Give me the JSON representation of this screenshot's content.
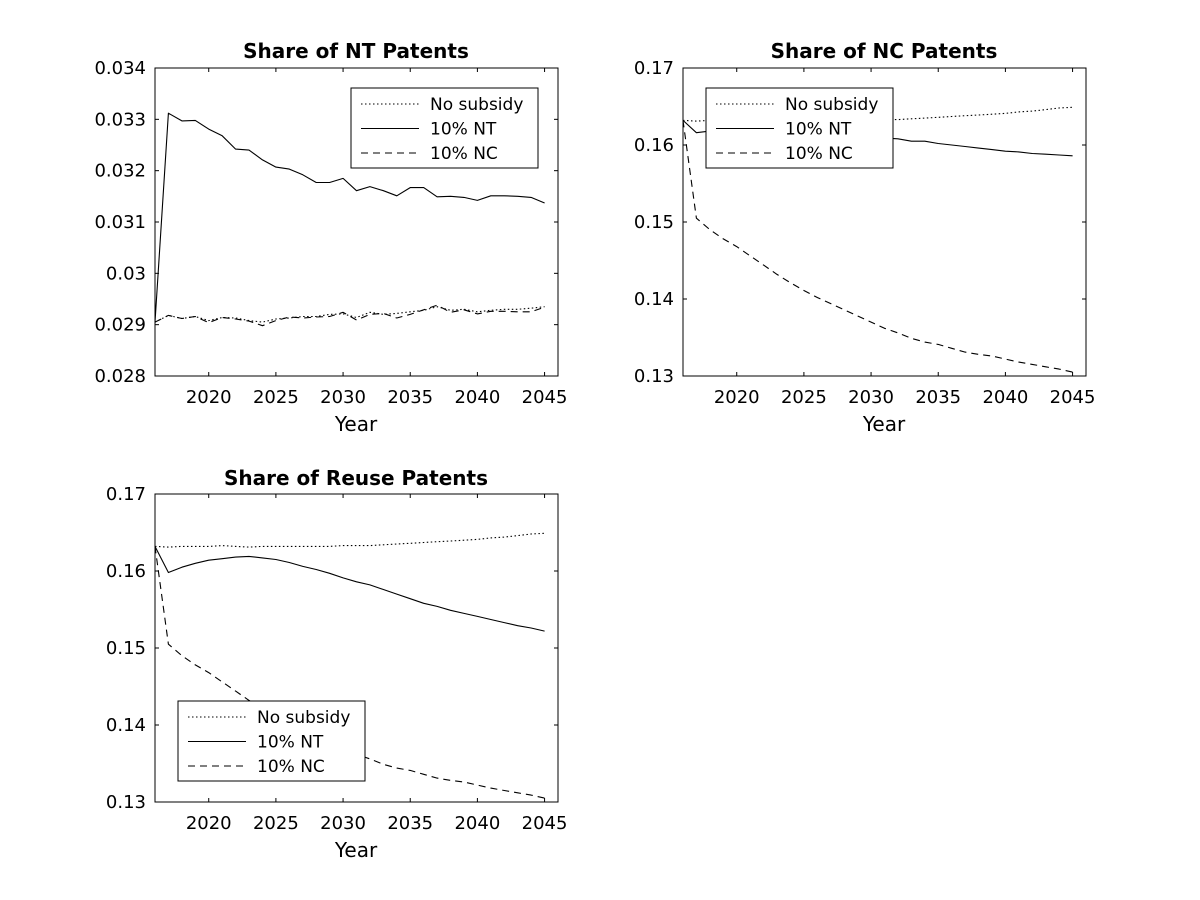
{
  "chart_data": [
    {
      "type": "line",
      "title": "Share of NT Patents",
      "xlabel": "Year",
      "ylabel": "",
      "xlim": [
        2016,
        2046
      ],
      "ylim": [
        0.028,
        0.034
      ],
      "xticks": [
        2020,
        2025,
        2030,
        2035,
        2040,
        2045
      ],
      "yticks": [
        0.028,
        0.029,
        0.03,
        0.031,
        0.032,
        0.033,
        0.034
      ],
      "ytick_labels": [
        "0.028",
        "0.029",
        "0.03",
        "0.031",
        "0.032",
        "0.033",
        "0.034"
      ],
      "grid": false,
      "legend_position": "top-right",
      "x": [
        2016,
        2017,
        2018,
        2019,
        2020,
        2021,
        2022,
        2023,
        2024,
        2025,
        2026,
        2027,
        2028,
        2029,
        2030,
        2031,
        2032,
        2033,
        2034,
        2035,
        2036,
        2037,
        2038,
        2039,
        2040,
        2041,
        2042,
        2043,
        2044,
        2045
      ],
      "series": [
        {
          "name": "No subsidy",
          "style": "dotted",
          "values": [
            0.02905,
            0.02918,
            0.02912,
            0.02916,
            0.02908,
            0.02914,
            0.02913,
            0.02908,
            0.02905,
            0.02911,
            0.02913,
            0.02916,
            0.02916,
            0.0292,
            0.02921,
            0.02914,
            0.02924,
            0.0292,
            0.02922,
            0.02925,
            0.02928,
            0.02935,
            0.02928,
            0.0293,
            0.02925,
            0.02928,
            0.0293,
            0.0293,
            0.02932,
            0.02935
          ]
        },
        {
          "name": "10% NT",
          "style": "solid",
          "values": [
            0.02905,
            0.03312,
            0.03297,
            0.03298,
            0.03281,
            0.03268,
            0.03242,
            0.0324,
            0.03221,
            0.03207,
            0.03203,
            0.03192,
            0.03177,
            0.03177,
            0.03185,
            0.03161,
            0.03169,
            0.03161,
            0.03151,
            0.03167,
            0.03167,
            0.03149,
            0.0315,
            0.03148,
            0.03142,
            0.03151,
            0.03151,
            0.0315,
            0.03148,
            0.03137
          ]
        },
        {
          "name": "10% NC",
          "style": "dashed",
          "values": [
            0.02905,
            0.02918,
            0.02912,
            0.02916,
            0.02904,
            0.02914,
            0.02911,
            0.02907,
            0.02898,
            0.02908,
            0.02915,
            0.02913,
            0.02915,
            0.02916,
            0.02924,
            0.02909,
            0.0292,
            0.02922,
            0.02913,
            0.0292,
            0.02929,
            0.02938,
            0.02924,
            0.02929,
            0.02921,
            0.02926,
            0.02926,
            0.02925,
            0.02925,
            0.02934
          ]
        }
      ]
    },
    {
      "type": "line",
      "title": "Share of NC Patents",
      "xlabel": "Year",
      "ylabel": "",
      "xlim": [
        2016,
        2046
      ],
      "ylim": [
        0.13,
        0.17
      ],
      "xticks": [
        2020,
        2025,
        2030,
        2035,
        2040,
        2045
      ],
      "yticks": [
        0.13,
        0.14,
        0.15,
        0.16,
        0.17
      ],
      "ytick_labels": [
        "0.13",
        "0.14",
        "0.15",
        "0.16",
        "0.17"
      ],
      "grid": false,
      "legend_position": "top-left",
      "x": [
        2016,
        2017,
        2018,
        2019,
        2020,
        2021,
        2022,
        2023,
        2024,
        2025,
        2026,
        2027,
        2028,
        2029,
        2030,
        2031,
        2032,
        2033,
        2034,
        2035,
        2036,
        2037,
        2038,
        2039,
        2040,
        2041,
        2042,
        2043,
        2044,
        2045
      ],
      "series": [
        {
          "name": "No subsidy",
          "style": "dotted",
          "values": [
            0.1632,
            0.1631,
            0.1632,
            0.1632,
            0.1632,
            0.1633,
            0.1632,
            0.1631,
            0.1632,
            0.1632,
            0.1632,
            0.1632,
            0.1632,
            0.1632,
            0.1633,
            0.1633,
            0.1633,
            0.1634,
            0.1635,
            0.1636,
            0.1637,
            0.1638,
            0.1639,
            0.164,
            0.1641,
            0.1643,
            0.1644,
            0.1646,
            0.1648,
            0.1649
          ]
        },
        {
          "name": "10% NT",
          "style": "solid",
          "values": [
            0.1632,
            0.1616,
            0.1618,
            0.1622,
            0.1623,
            0.1624,
            0.1624,
            0.1623,
            0.1622,
            0.162,
            0.1618,
            0.1616,
            0.1614,
            0.1612,
            0.1611,
            0.1609,
            0.1608,
            0.1605,
            0.1605,
            0.1602,
            0.16,
            0.1598,
            0.1596,
            0.1594,
            0.1592,
            0.1591,
            0.1589,
            0.1588,
            0.1587,
            0.1586
          ]
        },
        {
          "name": "10% NC",
          "style": "dashed",
          "values": [
            0.1632,
            0.1505,
            0.149,
            0.1478,
            0.1468,
            0.1456,
            0.1444,
            0.1432,
            0.1421,
            0.1411,
            0.1402,
            0.1394,
            0.1386,
            0.1378,
            0.137,
            0.1362,
            0.1356,
            0.1349,
            0.1344,
            0.1341,
            0.1336,
            0.1331,
            0.1328,
            0.1326,
            0.1322,
            0.1318,
            0.1315,
            0.1312,
            0.1309,
            0.1305
          ]
        }
      ]
    },
    {
      "type": "line",
      "title": "Share of Reuse Patents",
      "xlabel": "Year",
      "ylabel": "",
      "xlim": [
        2016,
        2046
      ],
      "ylim": [
        0.13,
        0.17
      ],
      "xticks": [
        2020,
        2025,
        2030,
        2035,
        2040,
        2045
      ],
      "yticks": [
        0.13,
        0.14,
        0.15,
        0.16,
        0.17
      ],
      "ytick_labels": [
        "0.13",
        "0.14",
        "0.15",
        "0.16",
        "0.17"
      ],
      "grid": false,
      "legend_position": "bottom-left",
      "x": [
        2016,
        2017,
        2018,
        2019,
        2020,
        2021,
        2022,
        2023,
        2024,
        2025,
        2026,
        2027,
        2028,
        2029,
        2030,
        2031,
        2032,
        2033,
        2034,
        2035,
        2036,
        2037,
        2038,
        2039,
        2040,
        2041,
        2042,
        2043,
        2044,
        2045
      ],
      "series": [
        {
          "name": "No subsidy",
          "style": "dotted",
          "values": [
            0.1632,
            0.1631,
            0.1632,
            0.1632,
            0.1632,
            0.1633,
            0.1632,
            0.1631,
            0.1632,
            0.1632,
            0.1632,
            0.1632,
            0.1632,
            0.1632,
            0.1633,
            0.1633,
            0.1633,
            0.1634,
            0.1635,
            0.1636,
            0.1637,
            0.1638,
            0.1639,
            0.164,
            0.1641,
            0.1643,
            0.1644,
            0.1646,
            0.1648,
            0.1649
          ]
        },
        {
          "name": "10% NT",
          "style": "solid",
          "values": [
            0.1632,
            0.1598,
            0.1605,
            0.161,
            0.1614,
            0.1616,
            0.1618,
            0.1619,
            0.1617,
            0.1615,
            0.1611,
            0.1606,
            0.1602,
            0.1597,
            0.1591,
            0.1586,
            0.1582,
            0.1576,
            0.157,
            0.1564,
            0.1558,
            0.1554,
            0.1549,
            0.1545,
            0.1541,
            0.1537,
            0.1533,
            0.1529,
            0.1526,
            0.1522
          ]
        },
        {
          "name": "10% NC",
          "style": "dashed",
          "values": [
            0.1632,
            0.1505,
            0.149,
            0.1478,
            0.1468,
            0.1456,
            0.1444,
            0.1432,
            0.1421,
            0.1411,
            0.1402,
            0.1394,
            0.1386,
            0.1378,
            0.137,
            0.1362,
            0.1356,
            0.1349,
            0.1344,
            0.1341,
            0.1336,
            0.1331,
            0.1328,
            0.1326,
            0.1322,
            0.1318,
            0.1315,
            0.1312,
            0.1309,
            0.1305
          ]
        }
      ]
    }
  ]
}
